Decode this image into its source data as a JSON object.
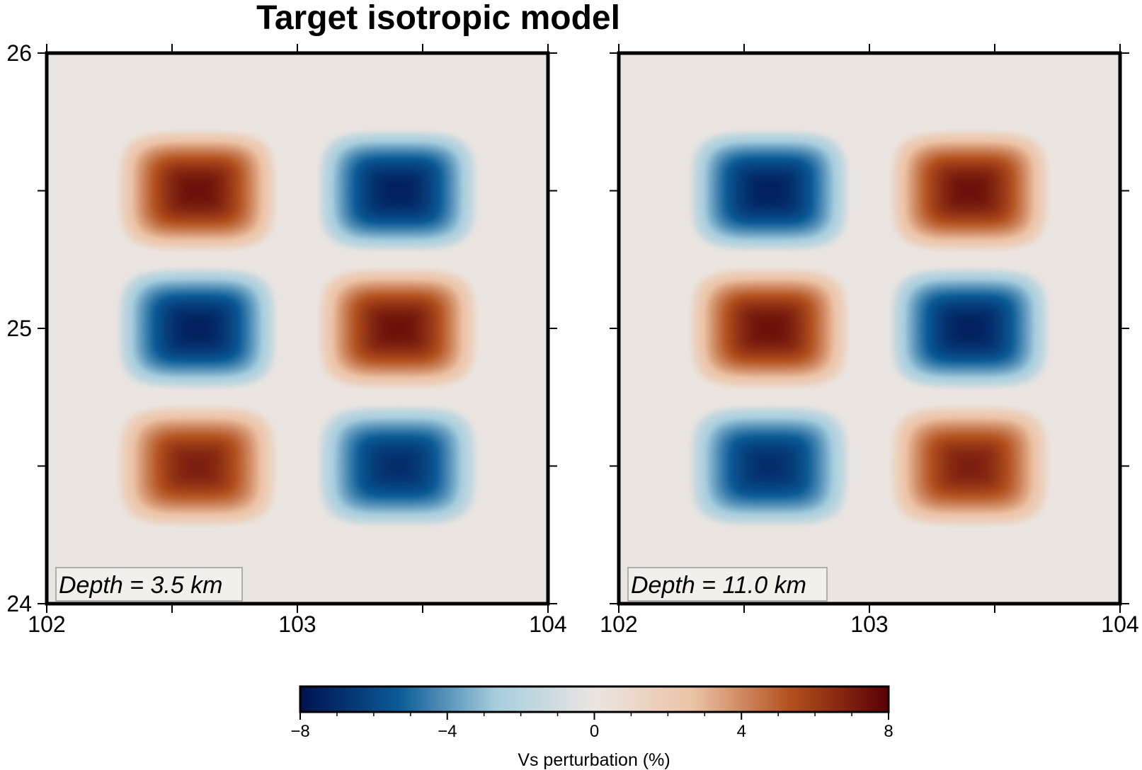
{
  "chart_data": {
    "type": "heatmap",
    "title": "Target isotropic model",
    "colormap": [
      "#00124f",
      "#0a5a96",
      "#a7cede",
      "#ebe5e1",
      "#ecc3a6",
      "#b2501e",
      "#5a0005"
    ],
    "colorbar": {
      "label": "Vs perturbation (%)",
      "range": [
        -8,
        8
      ],
      "tick_labels": [
        "−8",
        "−4",
        "0",
        "4",
        "8"
      ],
      "tick_values": [
        -8,
        -4,
        0,
        4,
        8
      ],
      "minor_tick_values": [
        -7,
        -6,
        -5,
        -3,
        -2,
        -1,
        1,
        2,
        3,
        5,
        6,
        7
      ]
    },
    "panels": [
      {
        "annotation": "Depth = 3.5 km",
        "xlim": [
          102,
          104
        ],
        "ylim": [
          24,
          26
        ],
        "x_tick_labels": [
          "102",
          "103",
          "104"
        ],
        "x_tick_values": [
          102,
          103,
          104
        ],
        "y_tick_labels": [
          "24",
          "25",
          "26"
        ],
        "y_tick_values": [
          24,
          25,
          26
        ],
        "anomalies": [
          {
            "lon": 102.6,
            "lat": 25.5,
            "amplitude": 7.5
          },
          {
            "lon": 103.4,
            "lat": 25.5,
            "amplitude": -7.5
          },
          {
            "lon": 102.6,
            "lat": 25.0,
            "amplitude": -7.5
          },
          {
            "lon": 103.4,
            "lat": 25.0,
            "amplitude": 7.5
          },
          {
            "lon": 102.6,
            "lat": 24.5,
            "amplitude": 7.0
          },
          {
            "lon": 103.4,
            "lat": 24.5,
            "amplitude": -7.0
          }
        ]
      },
      {
        "annotation": "Depth = 11.0 km",
        "xlim": [
          102,
          104
        ],
        "ylim": [
          24,
          26
        ],
        "x_tick_labels": [
          "102",
          "103",
          "104"
        ],
        "x_tick_values": [
          102,
          103,
          104
        ],
        "y_tick_labels": [],
        "y_tick_values": [
          24,
          25,
          26
        ],
        "anomalies": [
          {
            "lon": 102.6,
            "lat": 25.5,
            "amplitude": -7.5
          },
          {
            "lon": 103.4,
            "lat": 25.5,
            "amplitude": 7.5
          },
          {
            "lon": 102.6,
            "lat": 25.0,
            "amplitude": 7.5
          },
          {
            "lon": 103.4,
            "lat": 25.0,
            "amplitude": -7.5
          },
          {
            "lon": 102.6,
            "lat": 24.5,
            "amplitude": -7.0
          },
          {
            "lon": 103.4,
            "lat": 24.5,
            "amplitude": 7.0
          }
        ]
      }
    ]
  }
}
